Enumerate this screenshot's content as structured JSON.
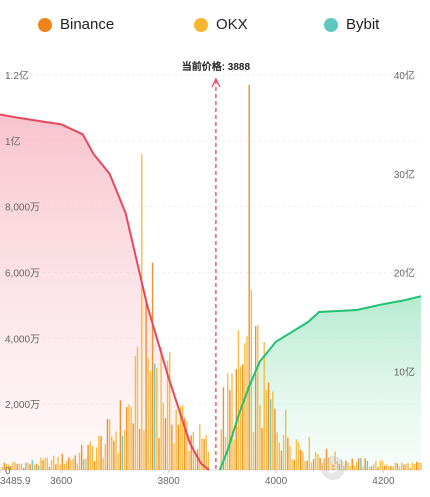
{
  "legend": [
    {
      "name": "Binance",
      "color": "#f0841a"
    },
    {
      "name": "OKX",
      "color": "#f5b731"
    },
    {
      "name": "Bybit",
      "color": "#5ec8bf"
    }
  ],
  "chart_data": {
    "type": "area",
    "title": "",
    "current_price_label": "当前价格: 3888",
    "current_price": 3888,
    "xlim": [
      3485.9,
      4270
    ],
    "x_ticks": [
      {
        "value": 3485.9,
        "label": "3485.9"
      },
      {
        "value": 3600,
        "label": "3600"
      },
      {
        "value": 3800,
        "label": "3800"
      },
      {
        "value": 4000,
        "label": "4000"
      },
      {
        "value": 4200,
        "label": "4200"
      }
    ],
    "y_left": {
      "ylim": [
        0,
        120000000
      ],
      "ticks": [
        {
          "value": 0,
          "label": "0"
        },
        {
          "value": 20000000,
          "label": "2,000万"
        },
        {
          "value": 40000000,
          "label": "4,000万"
        },
        {
          "value": 60000000,
          "label": "6,000万"
        },
        {
          "value": 80000000,
          "label": "8,000万"
        },
        {
          "value": 100000000,
          "label": "1亿"
        },
        {
          "value": 120000000,
          "label": "1.2亿"
        }
      ]
    },
    "y_right": {
      "ylim": [
        0,
        4000000000
      ],
      "ticks": [
        {
          "value": 0,
          "label": "0"
        },
        {
          "value": 1000000000,
          "label": "10亿"
        },
        {
          "value": 2000000000,
          "label": "20亿"
        },
        {
          "value": 3000000000,
          "label": "30亿"
        },
        {
          "value": 4000000000,
          "label": "40亿"
        }
      ]
    },
    "cumulative_long": {
      "color": "#e8475d",
      "fill": "#fbd3da",
      "x": [
        3485.9,
        3520,
        3560,
        3600,
        3640,
        3660,
        3690,
        3720,
        3740,
        3760,
        3780,
        3800,
        3820,
        3840,
        3860,
        3875
      ],
      "y": [
        108000000,
        107000000,
        106000000,
        105000000,
        102000000,
        96000000,
        90000000,
        78000000,
        64000000,
        50000000,
        39000000,
        28000000,
        18000000,
        8000000,
        2000000,
        0
      ]
    },
    "cumulative_short": {
      "color": "#21c273",
      "fill": "#d2f1e2",
      "x": [
        3895,
        3910,
        3930,
        3950,
        3970,
        4000,
        4030,
        4060,
        4080,
        4150,
        4200,
        4240,
        4270
      ],
      "y": [
        0,
        200000000,
        550000000,
        850000000,
        1100000000,
        1300000000,
        1400000000,
        1500000000,
        1600000000,
        1620000000,
        1680000000,
        1720000000,
        1760000000
      ]
    },
    "bars": {
      "exchanges": [
        "Binance",
        "OKX",
        "Bybit"
      ],
      "colors": [
        "#f0841a",
        "#f5b731",
        "#5ec8bf"
      ],
      "step": 4,
      "gap": [
        3876,
        3896
      ],
      "peaks": [
        {
          "x": 3750,
          "value": 3200000000
        },
        {
          "x": 3820,
          "value": 2700000000
        },
        {
          "x": 3940,
          "value": 3700000000
        },
        {
          "x": 3950,
          "value": 3900000000
        },
        {
          "x": 3770,
          "value": 2100000000
        }
      ]
    }
  }
}
